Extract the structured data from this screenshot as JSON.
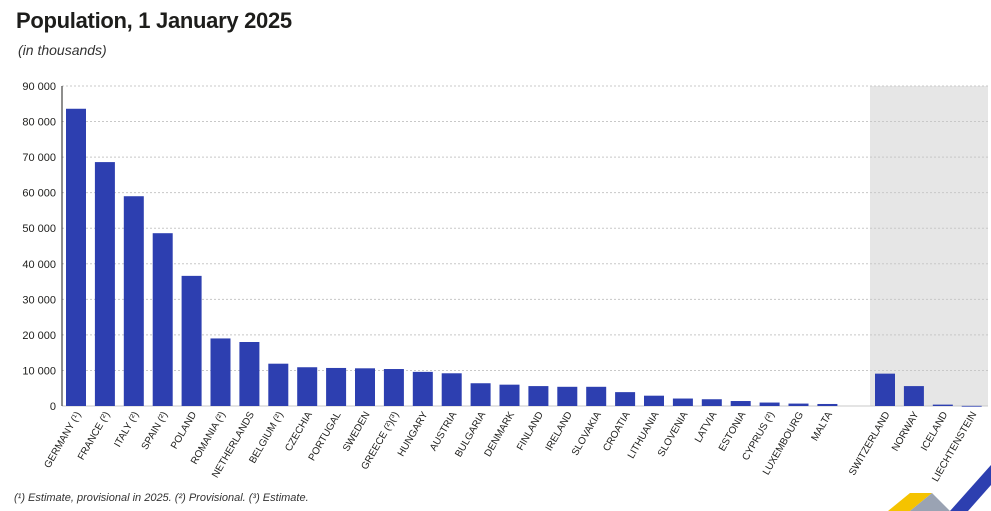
{
  "chart_data": {
    "type": "bar",
    "title": "Population, 1 January 2025",
    "subtitle": "(in thousands)",
    "ylim": [
      0,
      90000
    ],
    "yticks": [
      0,
      10000,
      20000,
      30000,
      40000,
      50000,
      60000,
      70000,
      80000,
      90000
    ],
    "ytick_labels": [
      "0",
      "10 000",
      "20 000",
      "30 000",
      "40 000",
      "50 000",
      "60 000",
      "70 000",
      "80 000",
      "90 000"
    ],
    "grid": true,
    "categories": [
      "GERMANY (¹)",
      "FRANCE (²)",
      "ITALY (²)",
      "SPAIN (²)",
      "POLAND",
      "ROMANIA (²)",
      "NETHERLANDS",
      "BELGIUM (²)",
      "CZECHIA",
      "PORTUGAL",
      "SWEDEN",
      "GREECE (²)(³)",
      "HUNGARY",
      "AUSTRIA",
      "BULGARIA",
      "DENMARK",
      "FINLAND",
      "IRELAND",
      "SLOVAKIA",
      "CROATIA",
      "LITHUANIA",
      "SLOVENIA",
      "LATVIA",
      "ESTONIA",
      "CYPRUS (²)",
      "LUXEMBOURG",
      "MALTA",
      "SWITZERLAND",
      "NORWAY",
      "ICELAND",
      "LIECHTENSTEIN"
    ],
    "values": [
      83600,
      68600,
      59000,
      48600,
      36600,
      19000,
      18000,
      11900,
      10900,
      10700,
      10600,
      10400,
      9600,
      9200,
      6400,
      6000,
      5600,
      5400,
      5400,
      3900,
      2900,
      2100,
      1900,
      1400,
      970,
      680,
      570,
      9100,
      5600,
      390,
      40
    ],
    "group_split_index": 27,
    "series_color": "#2d3fb0",
    "shaded_region_color": "#e6e6e6"
  },
  "footnote": "(¹) Estimate, provisional in 2025. (²) Provisional. (³) Estimate.",
  "logo": {
    "colors": [
      "#f5c300",
      "#2d3fb0",
      "#9aa3b3"
    ]
  }
}
